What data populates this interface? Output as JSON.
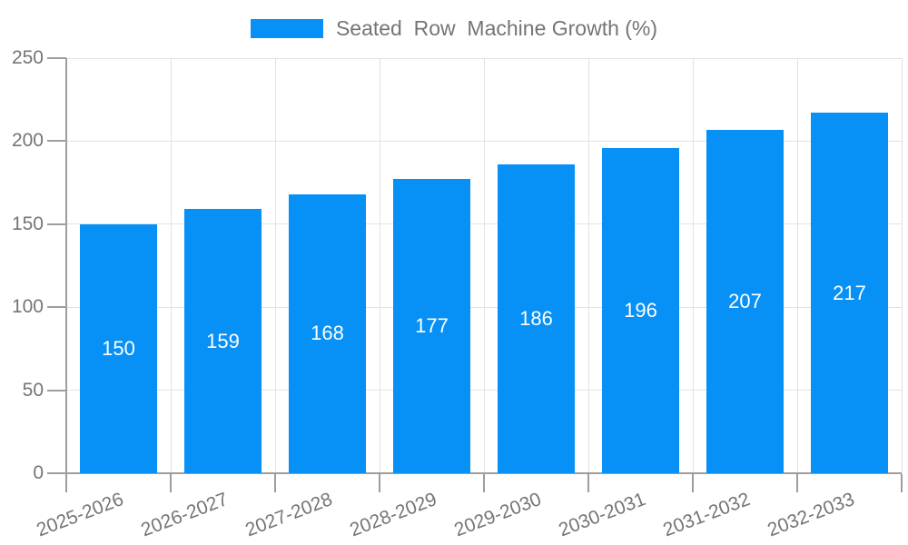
{
  "chart_data": {
    "type": "bar",
    "title": "",
    "legend": "Seated  Row  Machine Growth (%)",
    "legend_position": "top-center",
    "categories": [
      "2025-2026",
      "2026-2027",
      "2027-2028",
      "2028-2029",
      "2029-2030",
      "2030-2031",
      "2031-2032",
      "2032-2033"
    ],
    "values": [
      150,
      159,
      168,
      177,
      186,
      196,
      207,
      217
    ],
    "xlabel": "",
    "ylabel": "",
    "ylim": [
      0,
      250
    ],
    "yticks": [
      0,
      50,
      100,
      150,
      200,
      250
    ],
    "grid": "on",
    "bar_color": "#0790F5",
    "bar_label_color": "#ffffff",
    "axis_text_color": "#757575",
    "grid_color": "#e2e2e2",
    "axis_line_color": "#9e9e9e"
  }
}
